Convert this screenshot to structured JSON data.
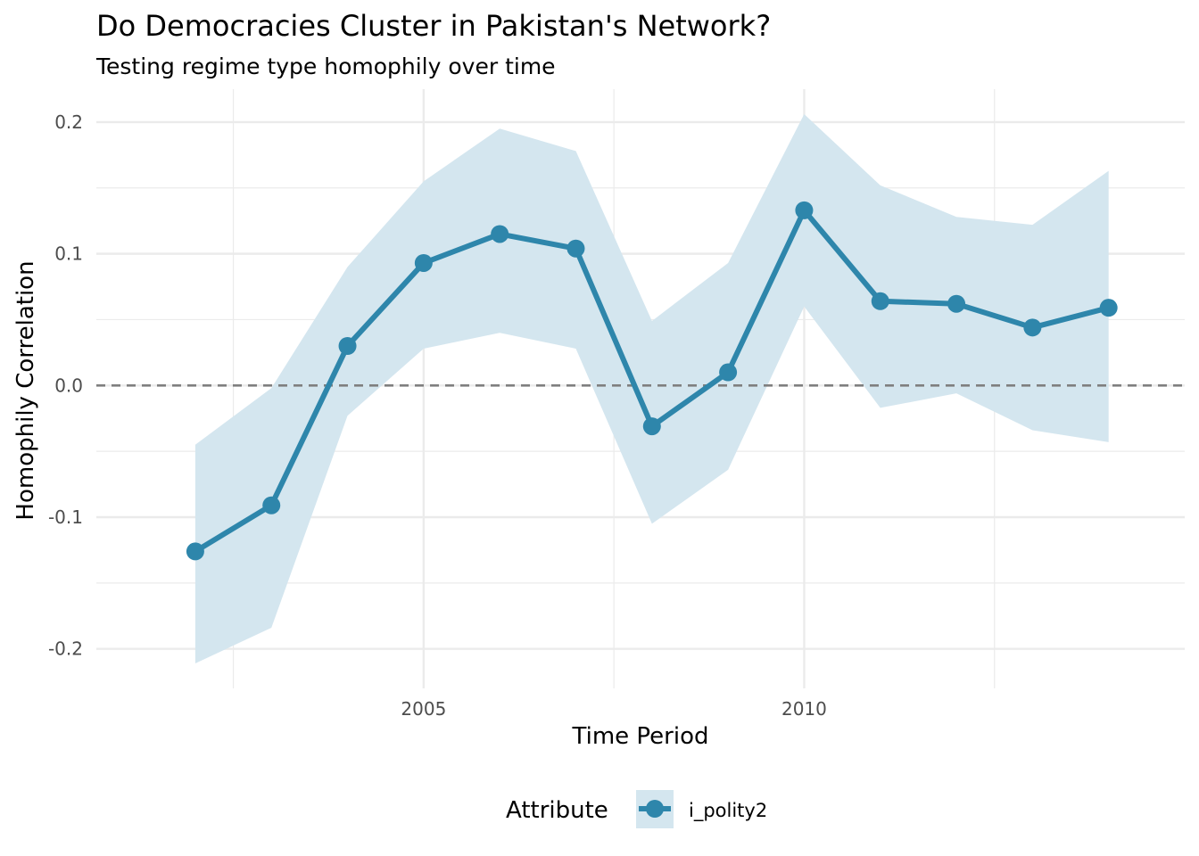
{
  "chart_data": {
    "type": "line",
    "title": "Do Democracies Cluster in Pakistan's Network?",
    "subtitle": "Testing regime type homophily over time",
    "xlabel": "Time Period",
    "ylabel": "Homophily Correlation",
    "x": [
      2002,
      2003,
      2004,
      2005,
      2006,
      2007,
      2008,
      2009,
      2010,
      2011,
      2012,
      2013,
      2014
    ],
    "series": [
      {
        "name": "i_polity2",
        "values": [
          -0.126,
          -0.091,
          0.03,
          0.093,
          0.115,
          0.104,
          -0.031,
          0.01,
          0.133,
          0.064,
          0.062,
          0.044,
          0.059
        ],
        "lower": [
          -0.211,
          -0.184,
          -0.023,
          0.028,
          0.04,
          0.028,
          -0.105,
          -0.064,
          0.06,
          -0.017,
          -0.006,
          -0.034,
          -0.043
        ],
        "upper": [
          -0.045,
          -0.002,
          0.09,
          0.155,
          0.195,
          0.178,
          0.049,
          0.093,
          0.206,
          0.152,
          0.128,
          0.122,
          0.163
        ]
      }
    ],
    "xlim": [
      2000.7,
      2015.0
    ],
    "ylim": [
      -0.23,
      0.225
    ],
    "x_ticks": [
      2005,
      2010
    ],
    "x_tick_labels": [
      "2005",
      "2010"
    ],
    "y_ticks": [
      -0.2,
      -0.1,
      0.0,
      0.1,
      0.2
    ],
    "y_tick_labels": [
      "-0.2",
      "-0.1",
      "0.0",
      "0.1",
      "0.2"
    ],
    "reference_line": 0.0,
    "grid": true,
    "legend_position": "bottom",
    "legend_title": "Attribute",
    "colors": {
      "line": "#2e86ab",
      "ribbon": "#d4e6ef",
      "reference": "#7f7f7f",
      "grid": "#ebebeb"
    }
  }
}
